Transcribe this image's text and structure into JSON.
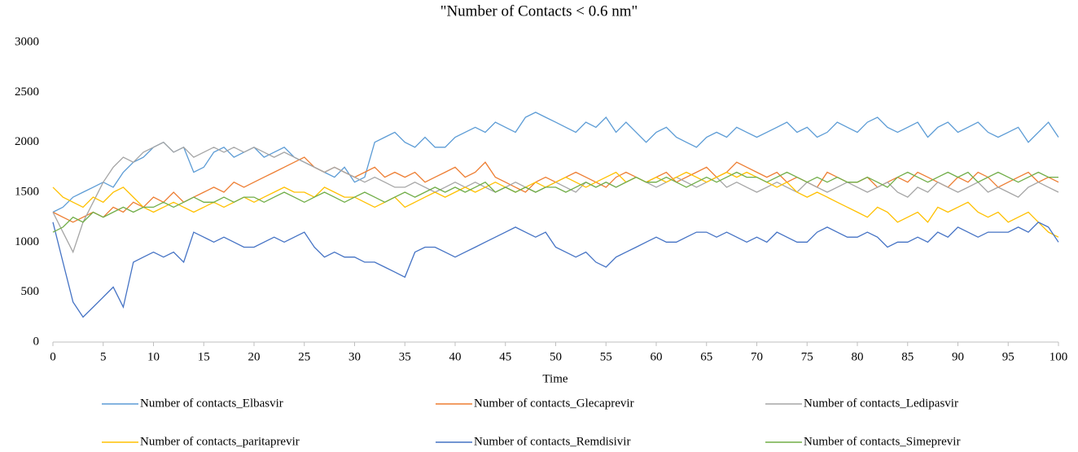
{
  "chart_data": {
    "type": "line",
    "title": "\"Number of Contacts < 0.6 nm\"",
    "x_label": "Time",
    "x": [
      0,
      1,
      2,
      3,
      4,
      5,
      6,
      7,
      8,
      9,
      10,
      11,
      12,
      13,
      14,
      15,
      16,
      17,
      18,
      19,
      20,
      21,
      22,
      23,
      24,
      25,
      26,
      27,
      28,
      29,
      30,
      31,
      32,
      33,
      34,
      35,
      36,
      37,
      38,
      39,
      40,
      41,
      42,
      43,
      44,
      45,
      46,
      47,
      48,
      49,
      50,
      51,
      52,
      53,
      54,
      55,
      56,
      57,
      58,
      59,
      60,
      61,
      62,
      63,
      64,
      65,
      66,
      67,
      68,
      69,
      70,
      71,
      72,
      73,
      74,
      75,
      76,
      77,
      78,
      79,
      80,
      81,
      82,
      83,
      84,
      85,
      86,
      87,
      88,
      89,
      90,
      91,
      92,
      93,
      94,
      95,
      96,
      97,
      98,
      99,
      100
    ],
    "xlim": [
      0,
      100
    ],
    "xticks": [
      0,
      5,
      10,
      15,
      20,
      25,
      30,
      35,
      40,
      45,
      50,
      55,
      60,
      65,
      70,
      75,
      80,
      85,
      90,
      95,
      100
    ],
    "ylim": [
      0,
      3000
    ],
    "yticks": [
      0,
      500,
      1000,
      1500,
      2000,
      2500,
      3000
    ],
    "grid": false,
    "legend": "bottom",
    "series": [
      {
        "name": "Number of contacts_Elbasvir",
        "color": "#5b9bd5",
        "values": [
          1300,
          1350,
          1450,
          1500,
          1550,
          1600,
          1550,
          1700,
          1800,
          1850,
          1950,
          2000,
          1900,
          1950,
          1700,
          1750,
          1900,
          1950,
          1850,
          1900,
          1950,
          1850,
          1900,
          1950,
          1850,
          1800,
          1750,
          1700,
          1650,
          1750,
          1600,
          1650,
          2000,
          2050,
          2100,
          2000,
          1950,
          2050,
          1950,
          1950,
          2050,
          2100,
          2150,
          2100,
          2200,
          2150,
          2100,
          2250,
          2300,
          2250,
          2200,
          2150,
          2100,
          2200,
          2150,
          2250,
          2100,
          2200,
          2100,
          2000,
          2100,
          2150,
          2050,
          2000,
          1950,
          2050,
          2100,
          2050,
          2150,
          2100,
          2050,
          2100,
          2150,
          2200,
          2100,
          2150,
          2050,
          2100,
          2200,
          2150,
          2100,
          2200,
          2250,
          2150,
          2100,
          2150,
          2200,
          2050,
          2150,
          2200,
          2100,
          2150,
          2200,
          2100,
          2050,
          2100,
          2150,
          2000,
          2100,
          2200,
          2050
        ]
      },
      {
        "name": "Number of contacts_Glecaprevir",
        "color": "#ed7d31",
        "values": [
          1300,
          1250,
          1200,
          1250,
          1300,
          1250,
          1350,
          1300,
          1400,
          1350,
          1450,
          1400,
          1500,
          1400,
          1450,
          1500,
          1550,
          1500,
          1600,
          1550,
          1600,
          1650,
          1700,
          1750,
          1800,
          1850,
          1750,
          1700,
          1750,
          1700,
          1650,
          1700,
          1750,
          1650,
          1700,
          1650,
          1700,
          1600,
          1650,
          1700,
          1750,
          1650,
          1700,
          1800,
          1650,
          1600,
          1550,
          1500,
          1600,
          1650,
          1600,
          1650,
          1700,
          1650,
          1600,
          1550,
          1650,
          1700,
          1650,
          1600,
          1650,
          1700,
          1600,
          1650,
          1700,
          1750,
          1650,
          1700,
          1800,
          1750,
          1700,
          1650,
          1700,
          1600,
          1650,
          1600,
          1550,
          1700,
          1650,
          1600,
          1600,
          1650,
          1550,
          1600,
          1650,
          1600,
          1700,
          1650,
          1600,
          1550,
          1650,
          1600,
          1700,
          1650,
          1550,
          1600,
          1650,
          1700,
          1600,
          1650,
          1600
        ]
      },
      {
        "name": "Number of contacts_Ledipasvir",
        "color": "#a5a5a5",
        "values": [
          1300,
          1100,
          900,
          1200,
          1400,
          1600,
          1750,
          1850,
          1800,
          1900,
          1950,
          2000,
          1900,
          1950,
          1850,
          1900,
          1950,
          1900,
          1950,
          1900,
          1950,
          1900,
          1850,
          1900,
          1850,
          1800,
          1750,
          1700,
          1750,
          1700,
          1650,
          1600,
          1650,
          1600,
          1550,
          1550,
          1600,
          1550,
          1500,
          1550,
          1600,
          1550,
          1600,
          1550,
          1500,
          1550,
          1600,
          1550,
          1500,
          1550,
          1600,
          1550,
          1500,
          1600,
          1550,
          1600,
          1550,
          1600,
          1650,
          1600,
          1550,
          1600,
          1650,
          1600,
          1550,
          1600,
          1650,
          1550,
          1600,
          1550,
          1500,
          1550,
          1600,
          1550,
          1500,
          1600,
          1550,
          1500,
          1550,
          1600,
          1550,
          1500,
          1550,
          1600,
          1500,
          1450,
          1550,
          1500,
          1600,
          1550,
          1500,
          1550,
          1600,
          1500,
          1550,
          1500,
          1450,
          1550,
          1600,
          1550,
          1500
        ]
      },
      {
        "name": "Number of contacts_paritaprevir",
        "color": "#ffc000",
        "values": [
          1550,
          1450,
          1400,
          1350,
          1450,
          1400,
          1500,
          1550,
          1450,
          1350,
          1300,
          1350,
          1400,
          1350,
          1300,
          1350,
          1400,
          1350,
          1400,
          1450,
          1400,
          1450,
          1500,
          1550,
          1500,
          1500,
          1450,
          1550,
          1500,
          1450,
          1450,
          1400,
          1350,
          1400,
          1450,
          1350,
          1400,
          1450,
          1500,
          1450,
          1500,
          1550,
          1500,
          1550,
          1600,
          1550,
          1500,
          1550,
          1600,
          1550,
          1600,
          1650,
          1600,
          1550,
          1600,
          1650,
          1700,
          1600,
          1650,
          1600,
          1650,
          1600,
          1650,
          1700,
          1650,
          1600,
          1650,
          1700,
          1650,
          1700,
          1650,
          1600,
          1550,
          1600,
          1500,
          1450,
          1500,
          1450,
          1400,
          1350,
          1300,
          1250,
          1350,
          1300,
          1200,
          1250,
          1300,
          1200,
          1350,
          1300,
          1350,
          1400,
          1300,
          1250,
          1300,
          1200,
          1250,
          1300,
          1200,
          1100,
          1050
        ]
      },
      {
        "name": "Number of contacts_Remdisivir",
        "color": "#4472c4",
        "values": [
          1200,
          800,
          400,
          250,
          350,
          450,
          550,
          350,
          800,
          850,
          900,
          850,
          900,
          800,
          1100,
          1050,
          1000,
          1050,
          1000,
          950,
          950,
          1000,
          1050,
          1000,
          1050,
          1100,
          950,
          850,
          900,
          850,
          850,
          800,
          800,
          750,
          700,
          650,
          900,
          950,
          950,
          900,
          850,
          900,
          950,
          1000,
          1050,
          1100,
          1150,
          1100,
          1050,
          1100,
          950,
          900,
          850,
          900,
          800,
          750,
          850,
          900,
          950,
          1000,
          1050,
          1000,
          1000,
          1050,
          1100,
          1100,
          1050,
          1100,
          1050,
          1000,
          1050,
          1000,
          1100,
          1050,
          1000,
          1000,
          1100,
          1150,
          1100,
          1050,
          1050,
          1100,
          1050,
          950,
          1000,
          1000,
          1050,
          1000,
          1100,
          1050,
          1150,
          1100,
          1050,
          1100,
          1100,
          1100,
          1150,
          1100,
          1200,
          1150,
          1000
        ]
      },
      {
        "name": "Number of contacts_Simeprevir",
        "color": "#70ad47",
        "values": [
          1100,
          1150,
          1250,
          1200,
          1300,
          1250,
          1300,
          1350,
          1300,
          1350,
          1350,
          1400,
          1350,
          1400,
          1450,
          1400,
          1400,
          1450,
          1400,
          1450,
          1450,
          1400,
          1450,
          1500,
          1450,
          1400,
          1450,
          1500,
          1450,
          1400,
          1450,
          1500,
          1450,
          1400,
          1450,
          1500,
          1450,
          1500,
          1550,
          1500,
          1550,
          1500,
          1550,
          1600,
          1500,
          1550,
          1500,
          1550,
          1500,
          1550,
          1550,
          1500,
          1550,
          1600,
          1550,
          1600,
          1550,
          1600,
          1650,
          1600,
          1600,
          1650,
          1600,
          1550,
          1600,
          1650,
          1600,
          1650,
          1700,
          1650,
          1650,
          1600,
          1650,
          1700,
          1650,
          1600,
          1650,
          1600,
          1650,
          1600,
          1600,
          1650,
          1600,
          1550,
          1650,
          1700,
          1650,
          1600,
          1650,
          1700,
          1650,
          1700,
          1600,
          1650,
          1700,
          1650,
          1600,
          1650,
          1700,
          1650,
          1650
        ]
      }
    ]
  }
}
